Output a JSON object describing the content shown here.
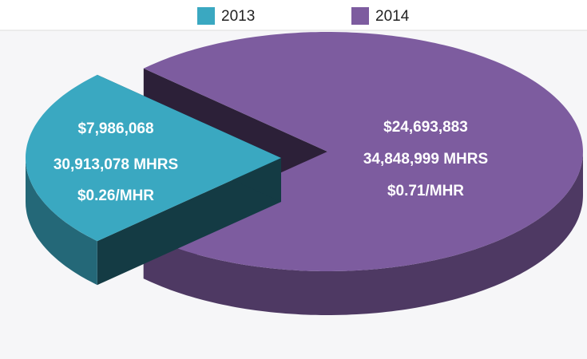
{
  "chart_data": {
    "type": "pie3d",
    "categories": [
      "2013",
      "2014"
    ],
    "values": [
      7986068,
      24693883
    ],
    "value_labels": [
      "$7,986,068",
      "$24,693,883"
    ],
    "annotations": [
      [
        "30,913,078 MHRS",
        "$0.26/MHR"
      ],
      [
        "34,848,999 MHRS",
        "$0.71/MHR"
      ]
    ],
    "colors": [
      "#3aa8c1",
      "#7d5c9f"
    ],
    "legend": "top"
  }
}
